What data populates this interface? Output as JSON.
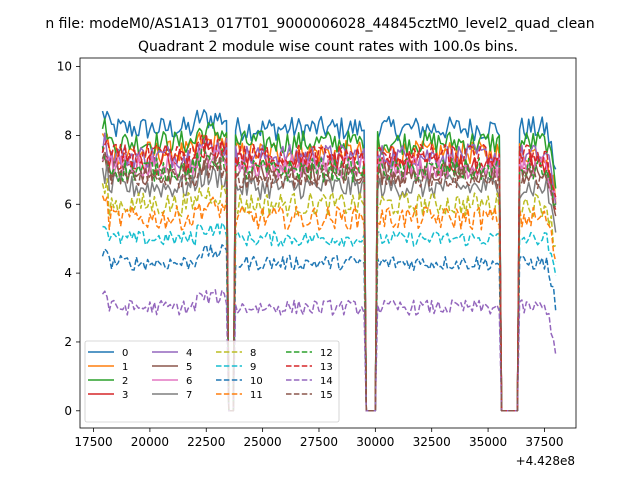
{
  "chart_data": {
    "type": "line",
    "suptitle": "n file: modeM0/AS1A13_017T01_9000006028_44845cztM0_level2_quad_clean",
    "title": "Quadrant 2 module wise count rates with 100.0s bins.",
    "xlabel": "",
    "ylabel": "",
    "x_offset_label": "+4.428e8",
    "xlim": [
      16900,
      38900
    ],
    "ylim": [
      -0.5,
      10.25
    ],
    "xticks": [
      17500,
      20000,
      22500,
      25000,
      27500,
      30000,
      32500,
      35000,
      37500
    ],
    "xtick_labels": [
      "17500",
      "20000",
      "22500",
      "25000",
      "27500",
      "30000",
      "32500",
      "35000",
      "37500"
    ],
    "yticks": [
      0,
      2,
      4,
      6,
      8,
      10
    ],
    "ytick_labels": [
      "0",
      "2",
      "4",
      "6",
      "8",
      "10"
    ],
    "grid": false,
    "legend_position": "lower-left",
    "legend_columns": 4,
    "x_start": 17900,
    "x_end": 38000,
    "bin": 100,
    "gaps": [
      [
        23500,
        23700
      ],
      [
        29600,
        30000
      ],
      [
        35600,
        36300
      ]
    ],
    "series": [
      {
        "name": "0",
        "color": "#1f77b4",
        "dash": "solid",
        "mean": 8.2
      },
      {
        "name": "1",
        "color": "#ff7f0e",
        "dash": "solid",
        "mean": 7.5
      },
      {
        "name": "2",
        "color": "#2ca02c",
        "dash": "solid",
        "mean": 7.8
      },
      {
        "name": "3",
        "color": "#d62728",
        "dash": "solid",
        "mean": 7.2
      },
      {
        "name": "4",
        "color": "#9467bd",
        "dash": "solid",
        "mean": 7.4
      },
      {
        "name": "5",
        "color": "#8c564b",
        "dash": "solid",
        "mean": 6.9
      },
      {
        "name": "6",
        "color": "#e377c2",
        "dash": "solid",
        "mean": 7.1
      },
      {
        "name": "7",
        "color": "#7f7f7f",
        "dash": "solid",
        "mean": 6.5
      },
      {
        "name": "8",
        "color": "#bcbd22",
        "dash": "dashed",
        "mean": 6.0
      },
      {
        "name": "9",
        "color": "#17becf",
        "dash": "dashed",
        "mean": 5.0
      },
      {
        "name": "10",
        "color": "#1f77b4",
        "dash": "dashed",
        "mean": 4.3
      },
      {
        "name": "11",
        "color": "#ff7f0e",
        "dash": "dashed",
        "mean": 5.6
      },
      {
        "name": "12",
        "color": "#2ca02c",
        "dash": "dashed",
        "mean": 7.0
      },
      {
        "name": "13",
        "color": "#d62728",
        "dash": "dashed",
        "mean": 7.4
      },
      {
        "name": "14",
        "color": "#9467bd",
        "dash": "dashed",
        "mean": 3.0
      },
      {
        "name": "15",
        "color": "#8c564b",
        "dash": "dashed",
        "mean": 6.8
      }
    ]
  }
}
